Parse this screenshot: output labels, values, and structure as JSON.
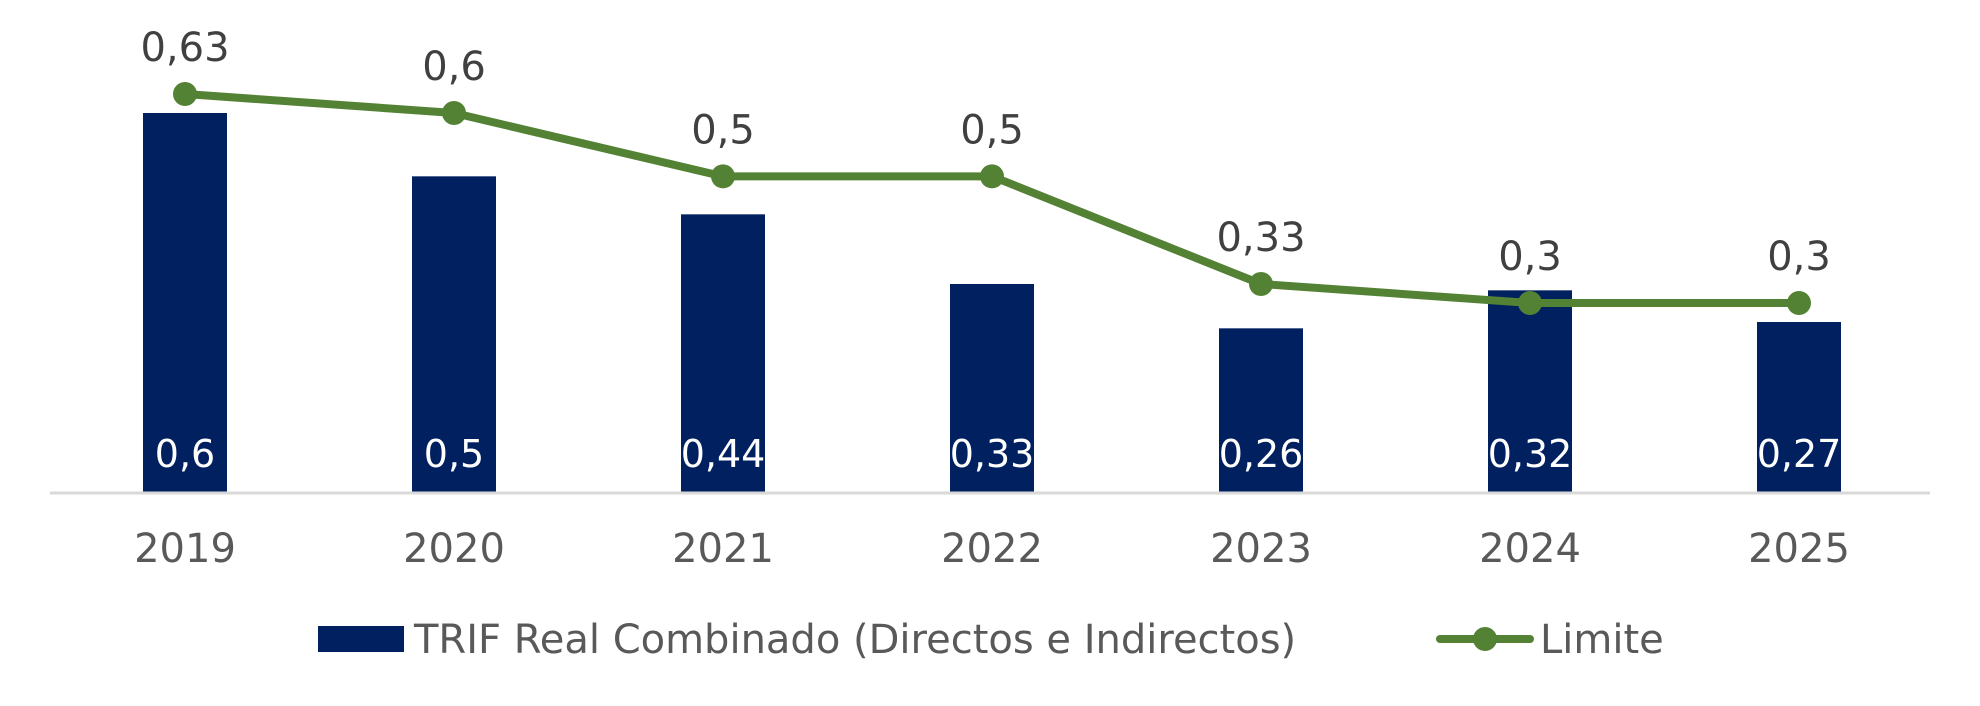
{
  "chart_data": {
    "type": "bar",
    "categories": [
      "2019",
      "2020",
      "2021",
      "2022",
      "2023",
      "2024",
      "2025"
    ],
    "series": [
      {
        "name": "TRIF Real Combinado (Directos e Indirectos)",
        "kind": "bar",
        "color": "#002060",
        "values": [
          0.6,
          0.5,
          0.44,
          0.33,
          0.26,
          0.32,
          0.27
        ],
        "labels": [
          "0,6",
          "0,5",
          "0,44",
          "0,33",
          "0,26",
          "0,32",
          "0,27"
        ]
      },
      {
        "name": "Limite",
        "kind": "line",
        "color": "#548235",
        "values": [
          0.63,
          0.6,
          0.5,
          0.5,
          0.33,
          0.3,
          0.3
        ],
        "labels": [
          "0,63",
          "0,6",
          "0,5",
          "0,5",
          "0,33",
          "0,3",
          "0,3"
        ]
      }
    ],
    "ylim": [
      0,
      0.63
    ],
    "title": "",
    "xlabel": "",
    "ylabel": "",
    "grid": false,
    "legend": "bottom-center",
    "axis_color": "#d9d9d9"
  }
}
